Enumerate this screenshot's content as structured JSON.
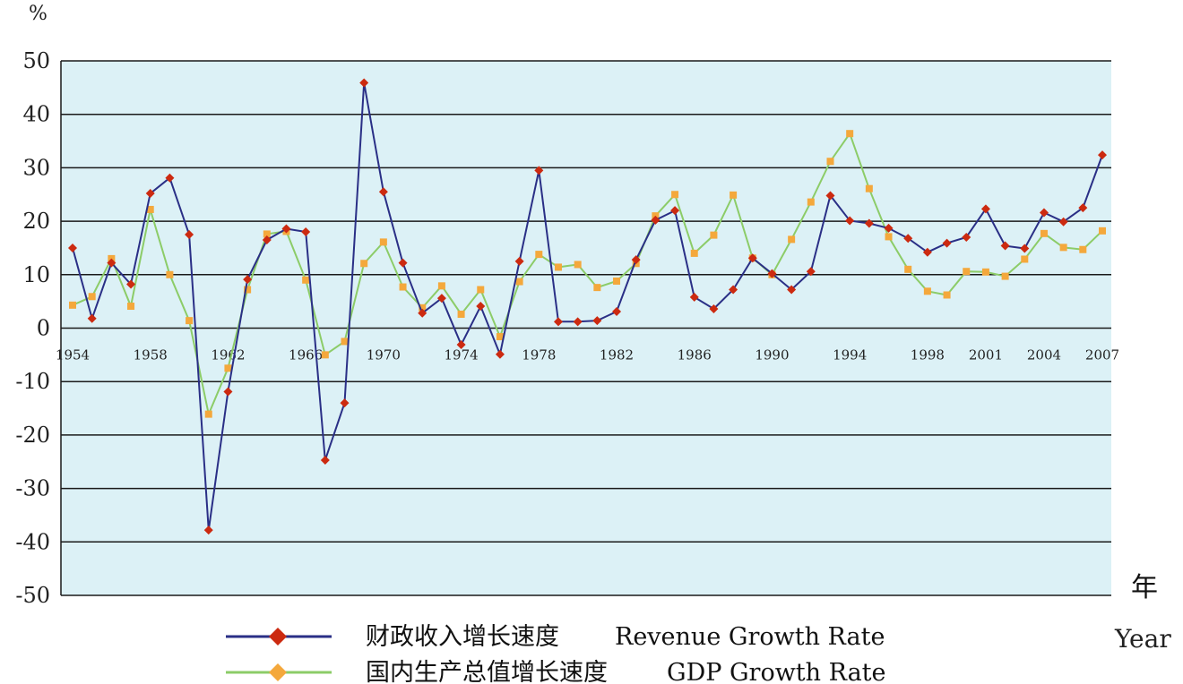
{
  "chart_data": {
    "type": "line",
    "ylabel": "%",
    "xlabel_zh": "年",
    "xlabel_en": "Year",
    "ylim": [
      -50,
      50
    ],
    "yticks": [
      50,
      40,
      30,
      20,
      10,
      0,
      -10,
      -20,
      -30,
      -40,
      -50
    ],
    "xlim": [
      1954,
      2007
    ],
    "xticks": [
      "1954",
      "1958",
      "1962",
      "1966",
      "1970",
      "1974",
      "1978",
      "1982",
      "1986",
      "1990",
      "1994",
      "1998",
      "2001",
      "2004",
      "2007"
    ],
    "grid": true,
    "legend_position": "bottom",
    "plot_background": "#dcf1f6",
    "x": [
      1954,
      1955,
      1956,
      1957,
      1958,
      1959,
      1960,
      1961,
      1962,
      1963,
      1964,
      1965,
      1966,
      1967,
      1968,
      1969,
      1970,
      1971,
      1972,
      1973,
      1974,
      1975,
      1976,
      1977,
      1978,
      1979,
      1980,
      1981,
      1982,
      1983,
      1984,
      1985,
      1986,
      1987,
      1988,
      1989,
      1990,
      1991,
      1992,
      1993,
      1994,
      1995,
      1996,
      1997,
      1998,
      1999,
      2000,
      2001,
      2002,
      2003,
      2004,
      2005,
      2006,
      2007
    ],
    "series": [
      {
        "name_zh": "财政收入增长速度",
        "name_en": "Revenue Growth Rate",
        "color": "#2a2f86",
        "marker_color": "#cc2a10",
        "values": [
          15,
          1.8,
          12.2,
          8.2,
          25.2,
          28.1,
          17.5,
          -37.8,
          -11.9,
          9.1,
          16.5,
          18.6,
          18,
          -24.7,
          -14,
          45.9,
          25.5,
          12.2,
          2.8,
          5.6,
          -3.1,
          4.1,
          -4.9,
          12.5,
          29.5,
          1.2,
          1.2,
          1.4,
          3.1,
          12.8,
          20.2,
          22,
          5.8,
          3.6,
          7.2,
          13.1,
          10.2,
          7.2,
          10.6,
          24.8,
          20.1,
          19.6,
          18.7,
          16.8,
          14.2,
          15.9,
          17,
          22.3,
          15.4,
          14.9,
          21.6,
          19.9,
          22.5,
          32.4
        ]
      },
      {
        "name_zh": "国内生产总值增长速度",
        "name_en": "GDP Growth Rate",
        "color": "#8ccc68",
        "marker_color": "#f4a83c",
        "values": [
          4.3,
          5.9,
          13,
          4.1,
          22.2,
          10,
          1.4,
          -16.1,
          -7.5,
          7.2,
          17.6,
          18.1,
          9,
          -5,
          -2.5,
          12.1,
          16.1,
          7.7,
          3.8,
          7.9,
          2.6,
          7.2,
          -1.6,
          8.7,
          13.8,
          11.4,
          11.9,
          7.6,
          8.8,
          12.1,
          21,
          25,
          14,
          17.4,
          24.9,
          13.1,
          10,
          16.6,
          23.6,
          31.2,
          36.4,
          26.1,
          17.1,
          11,
          6.9,
          6.2,
          10.6,
          10.5,
          9.7,
          12.9,
          17.7,
          15.1,
          14.7,
          18.2
        ]
      }
    ]
  }
}
